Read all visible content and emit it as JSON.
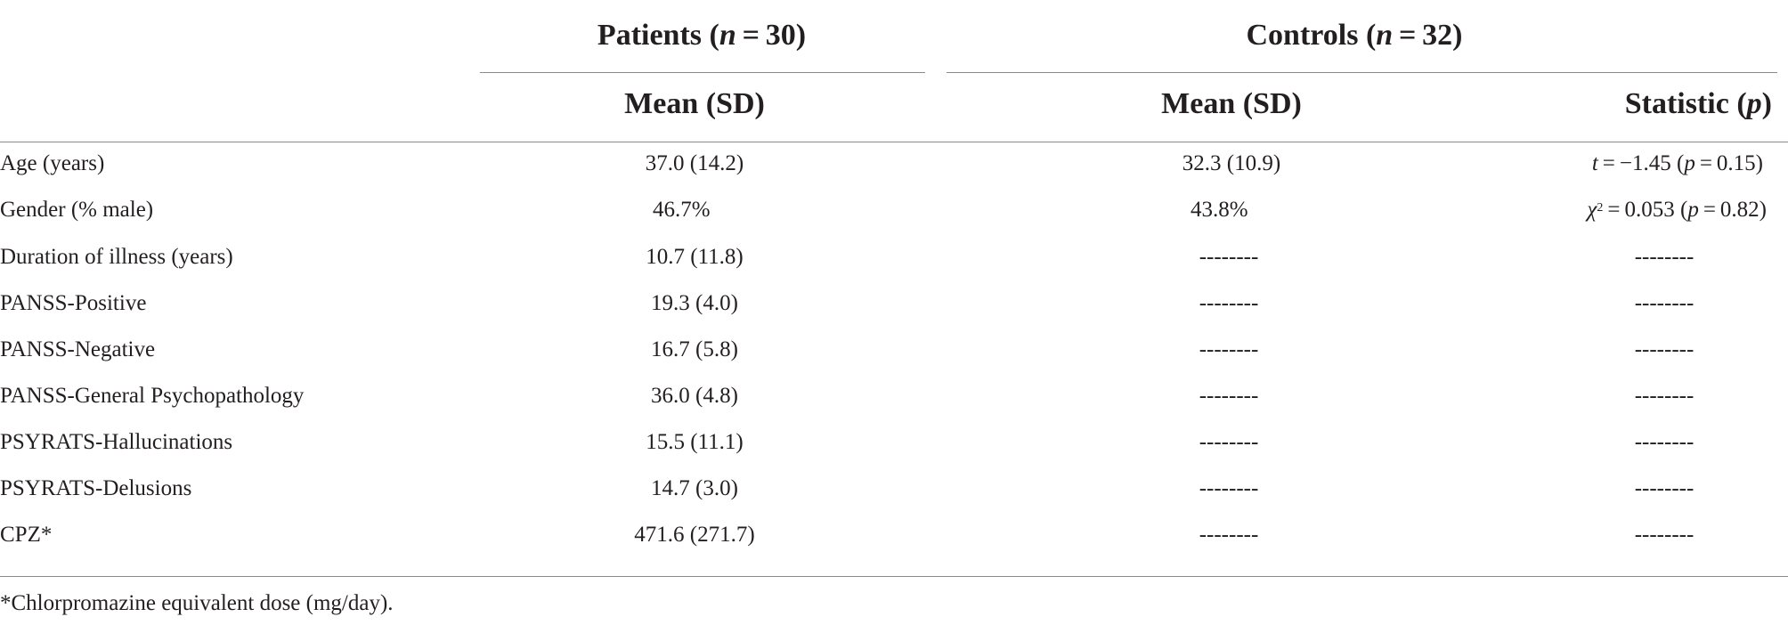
{
  "header": {
    "patients_label": "Patients (",
    "patients_n_var": "n",
    "patients_n_value": " = 30)",
    "controls_label": "Controls (",
    "controls_n_var": "n",
    "controls_n_value": " = 32)",
    "patients_sub": "Mean (SD)",
    "controls_sub": "Mean (SD)",
    "statistic_label": "Statistic (",
    "statistic_var": "p",
    "statistic_close": ")"
  },
  "rows": [
    {
      "label": "Age (years)",
      "patients": "37.0 (14.2)",
      "controls": "32.3 (10.9)"
    },
    {
      "label": "Gender (% male)",
      "patients": "46.7%",
      "controls": "43.8%"
    },
    {
      "label": "Duration of illness (years)",
      "patients": "10.7 (11.8)",
      "controls": "--------",
      "statistic": "--------"
    },
    {
      "label": "PANSS-Positive",
      "patients": "19.3 (4.0)",
      "controls": "--------",
      "statistic": "--------"
    },
    {
      "label": "PANSS-Negative",
      "patients": "16.7 (5.8)",
      "controls": "--------",
      "statistic": "--------"
    },
    {
      "label": "PANSS-General Psychopathology",
      "patients": "36.0 (4.8)",
      "controls": "--------",
      "statistic": "--------"
    },
    {
      "label": "PSYRATS-Hallucinations",
      "patients": "15.5 (11.1)",
      "controls": "--------",
      "statistic": "--------"
    },
    {
      "label": "PSYRATS-Delusions",
      "patients": "14.7 (3.0)",
      "controls": "--------",
      "statistic": "--------"
    },
    {
      "label": "CPZ*",
      "patients": "471.6 (271.7)",
      "controls": "--------",
      "statistic": "--------"
    }
  ],
  "stat_age": {
    "var": "t",
    "text": " = −1.45 (",
    "p_var": "p",
    "p_text": " = 0.15)"
  },
  "stat_gender": {
    "var": "χ",
    "sup": "2",
    "text": " = 0.053 (",
    "p_var": "p",
    "p_text": " = 0.82)"
  },
  "footnote": "*Chlorpromazine equivalent dose (mg/day)."
}
